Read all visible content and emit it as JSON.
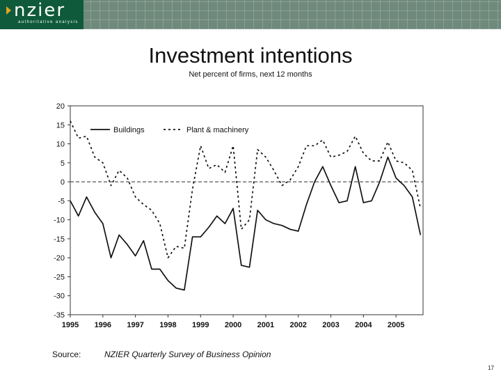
{
  "header": {
    "logo_text": "nzier",
    "logo_tagline": "authoritative analysis"
  },
  "slide": {
    "title": "Investment intentions",
    "subtitle": "Net percent of firms, next 12 months",
    "source_label": "Source:",
    "source_text": "NZIER Quarterly Survey of Business Opinion",
    "page_number": "17"
  },
  "colors": {
    "banner": "#6f8a7c",
    "logo_block": "#0e5a3a",
    "logo_arrow": "#e3a321",
    "series": "#111111",
    "zero_line": "#555555"
  },
  "chart_data": {
    "type": "line",
    "ylim": [
      -35,
      20
    ],
    "yticks": [
      20,
      15,
      10,
      5,
      0,
      -5,
      -10,
      -15,
      -20,
      -25,
      -30,
      -35
    ],
    "xlim": [
      1995,
      2005.83
    ],
    "xticks": [
      1995,
      1996,
      1997,
      1998,
      1999,
      2000,
      2001,
      2002,
      2003,
      2004,
      2005
    ],
    "grid": false,
    "legend_position": "top-left",
    "reference_line": 0,
    "x": [
      1995.0,
      1995.25,
      1995.5,
      1995.75,
      1996.0,
      1996.25,
      1996.5,
      1996.75,
      1997.0,
      1997.25,
      1997.5,
      1997.75,
      1998.0,
      1998.25,
      1998.5,
      1998.75,
      1999.0,
      1999.25,
      1999.5,
      1999.75,
      2000.0,
      2000.25,
      2000.5,
      2000.75,
      2001.0,
      2001.25,
      2001.5,
      2001.75,
      2002.0,
      2002.25,
      2002.5,
      2002.75,
      2003.0,
      2003.25,
      2003.5,
      2003.75,
      2004.0,
      2004.25,
      2004.5,
      2004.75,
      2005.0,
      2005.25,
      2005.5,
      2005.75
    ],
    "series": [
      {
        "name": "Buildings",
        "style": "solid",
        "values": [
          -5,
          -9,
          -4,
          -8,
          -11,
          -20,
          -14,
          -16.5,
          -19.5,
          -15.5,
          -23,
          -23,
          -26,
          -28,
          -28.5,
          -14.5,
          -14.5,
          -12,
          -9,
          -11,
          -7,
          -22,
          -22.5,
          -7.5,
          -10,
          -11,
          -11.5,
          -12.5,
          -13,
          -6,
          0,
          4,
          -1,
          -5.5,
          -5,
          4,
          -5.5,
          -5,
          0,
          6.5,
          1,
          -1,
          -4,
          -14
        ]
      },
      {
        "name": "Plant & machinery",
        "style": "dashed",
        "values": [
          16,
          11.5,
          12,
          6.5,
          5,
          -1,
          3,
          1,
          -4,
          -6,
          -7.5,
          -11,
          -20,
          -17,
          -17.5,
          -2,
          9.5,
          3.5,
          4.5,
          2.5,
          9.5,
          -12.5,
          -10,
          8.5,
          6.5,
          3,
          -1,
          0.5,
          4,
          9.5,
          9.5,
          11,
          6.5,
          7,
          8,
          12,
          7.5,
          5.5,
          5.5,
          10.5,
          5.5,
          5,
          3,
          -7
        ]
      }
    ]
  }
}
